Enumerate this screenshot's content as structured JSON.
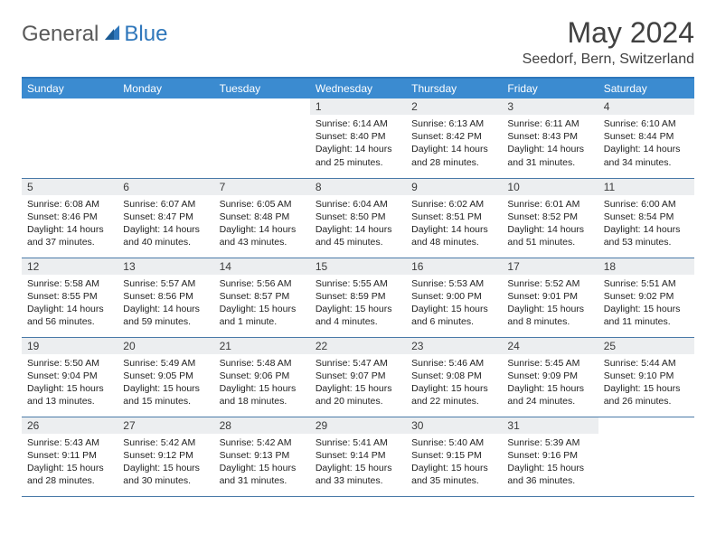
{
  "brand": {
    "general": "General",
    "blue": "Blue"
  },
  "title": "May 2024",
  "location": "Seedorf, Bern, Switzerland",
  "colors": {
    "header_bg": "#3b8bd0",
    "rule": "#2f77bb",
    "daynum_bg": "#eceef0",
    "row_border": "#4a7aa8",
    "logo_gray": "#5a5a5a",
    "logo_blue": "#2f77bb"
  },
  "weekdays": [
    "Sunday",
    "Monday",
    "Tuesday",
    "Wednesday",
    "Thursday",
    "Friday",
    "Saturday"
  ],
  "first_weekday_index": 3,
  "days": [
    {
      "n": 1,
      "sunrise": "6:14 AM",
      "sunset": "8:40 PM",
      "daylight": "14 hours and 25 minutes."
    },
    {
      "n": 2,
      "sunrise": "6:13 AM",
      "sunset": "8:42 PM",
      "daylight": "14 hours and 28 minutes."
    },
    {
      "n": 3,
      "sunrise": "6:11 AM",
      "sunset": "8:43 PM",
      "daylight": "14 hours and 31 minutes."
    },
    {
      "n": 4,
      "sunrise": "6:10 AM",
      "sunset": "8:44 PM",
      "daylight": "14 hours and 34 minutes."
    },
    {
      "n": 5,
      "sunrise": "6:08 AM",
      "sunset": "8:46 PM",
      "daylight": "14 hours and 37 minutes."
    },
    {
      "n": 6,
      "sunrise": "6:07 AM",
      "sunset": "8:47 PM",
      "daylight": "14 hours and 40 minutes."
    },
    {
      "n": 7,
      "sunrise": "6:05 AM",
      "sunset": "8:48 PM",
      "daylight": "14 hours and 43 minutes."
    },
    {
      "n": 8,
      "sunrise": "6:04 AM",
      "sunset": "8:50 PM",
      "daylight": "14 hours and 45 minutes."
    },
    {
      "n": 9,
      "sunrise": "6:02 AM",
      "sunset": "8:51 PM",
      "daylight": "14 hours and 48 minutes."
    },
    {
      "n": 10,
      "sunrise": "6:01 AM",
      "sunset": "8:52 PM",
      "daylight": "14 hours and 51 minutes."
    },
    {
      "n": 11,
      "sunrise": "6:00 AM",
      "sunset": "8:54 PM",
      "daylight": "14 hours and 53 minutes."
    },
    {
      "n": 12,
      "sunrise": "5:58 AM",
      "sunset": "8:55 PM",
      "daylight": "14 hours and 56 minutes."
    },
    {
      "n": 13,
      "sunrise": "5:57 AM",
      "sunset": "8:56 PM",
      "daylight": "14 hours and 59 minutes."
    },
    {
      "n": 14,
      "sunrise": "5:56 AM",
      "sunset": "8:57 PM",
      "daylight": "15 hours and 1 minute."
    },
    {
      "n": 15,
      "sunrise": "5:55 AM",
      "sunset": "8:59 PM",
      "daylight": "15 hours and 4 minutes."
    },
    {
      "n": 16,
      "sunrise": "5:53 AM",
      "sunset": "9:00 PM",
      "daylight": "15 hours and 6 minutes."
    },
    {
      "n": 17,
      "sunrise": "5:52 AM",
      "sunset": "9:01 PM",
      "daylight": "15 hours and 8 minutes."
    },
    {
      "n": 18,
      "sunrise": "5:51 AM",
      "sunset": "9:02 PM",
      "daylight": "15 hours and 11 minutes."
    },
    {
      "n": 19,
      "sunrise": "5:50 AM",
      "sunset": "9:04 PM",
      "daylight": "15 hours and 13 minutes."
    },
    {
      "n": 20,
      "sunrise": "5:49 AM",
      "sunset": "9:05 PM",
      "daylight": "15 hours and 15 minutes."
    },
    {
      "n": 21,
      "sunrise": "5:48 AM",
      "sunset": "9:06 PM",
      "daylight": "15 hours and 18 minutes."
    },
    {
      "n": 22,
      "sunrise": "5:47 AM",
      "sunset": "9:07 PM",
      "daylight": "15 hours and 20 minutes."
    },
    {
      "n": 23,
      "sunrise": "5:46 AM",
      "sunset": "9:08 PM",
      "daylight": "15 hours and 22 minutes."
    },
    {
      "n": 24,
      "sunrise": "5:45 AM",
      "sunset": "9:09 PM",
      "daylight": "15 hours and 24 minutes."
    },
    {
      "n": 25,
      "sunrise": "5:44 AM",
      "sunset": "9:10 PM",
      "daylight": "15 hours and 26 minutes."
    },
    {
      "n": 26,
      "sunrise": "5:43 AM",
      "sunset": "9:11 PM",
      "daylight": "15 hours and 28 minutes."
    },
    {
      "n": 27,
      "sunrise": "5:42 AM",
      "sunset": "9:12 PM",
      "daylight": "15 hours and 30 minutes."
    },
    {
      "n": 28,
      "sunrise": "5:42 AM",
      "sunset": "9:13 PM",
      "daylight": "15 hours and 31 minutes."
    },
    {
      "n": 29,
      "sunrise": "5:41 AM",
      "sunset": "9:14 PM",
      "daylight": "15 hours and 33 minutes."
    },
    {
      "n": 30,
      "sunrise": "5:40 AM",
      "sunset": "9:15 PM",
      "daylight": "15 hours and 35 minutes."
    },
    {
      "n": 31,
      "sunrise": "5:39 AM",
      "sunset": "9:16 PM",
      "daylight": "15 hours and 36 minutes."
    }
  ],
  "labels": {
    "sunrise": "Sunrise:",
    "sunset": "Sunset:",
    "daylight": "Daylight:"
  }
}
